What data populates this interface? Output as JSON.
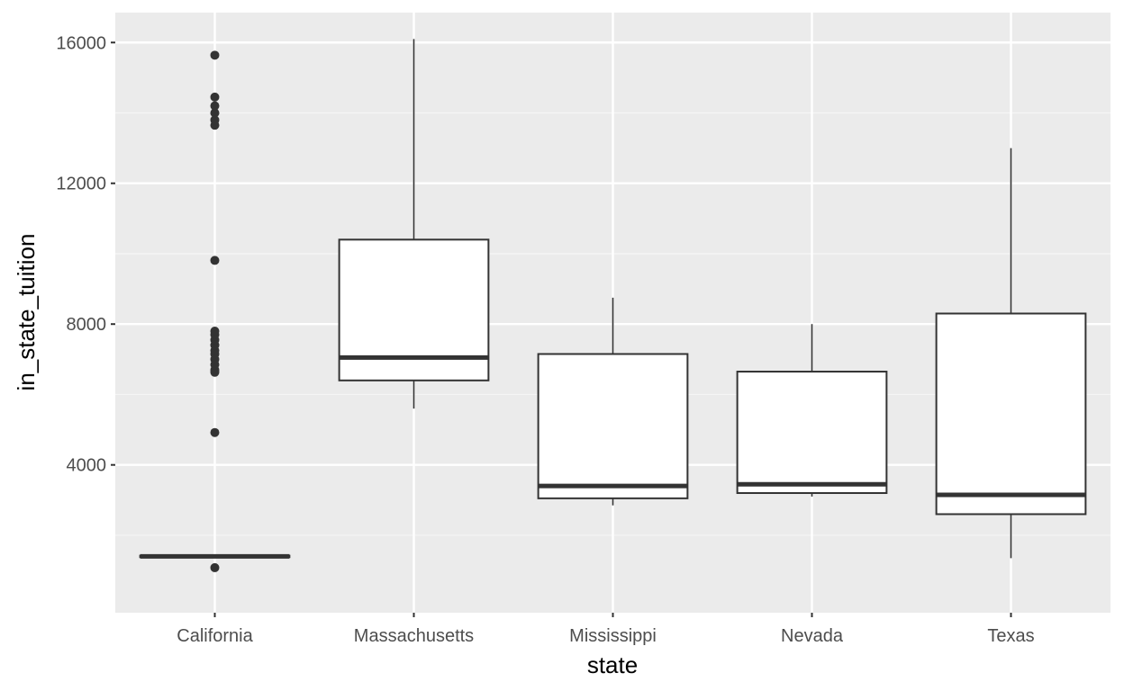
{
  "chart_data": {
    "type": "boxplot",
    "title": "",
    "xlabel": "state",
    "ylabel": "in_state_tuition",
    "categories": [
      "California",
      "Massachusetts",
      "Mississippi",
      "Nevada",
      "Texas"
    ],
    "ylim": [
      -200,
      16850
    ],
    "y_ticks": [
      4000,
      8000,
      12000,
      16000
    ],
    "y_tick_labels": [
      "4000",
      "8000",
      "12000",
      "16000"
    ],
    "y_minor_ticks": [
      2000,
      6000,
      10000,
      14000
    ],
    "boxes": [
      {
        "name": "California",
        "whisker_low": 1380,
        "q1": 1380,
        "median": 1400,
        "q3": 1420,
        "whisker_high": 1420,
        "outliers": [
          1080,
          4920,
          6630,
          6700,
          6850,
          7000,
          7150,
          7250,
          7400,
          7550,
          7700,
          7800,
          9810,
          13650,
          13800,
          14000,
          14200,
          14450,
          15640
        ]
      },
      {
        "name": "Massachusetts",
        "whisker_low": 5600,
        "q1": 6400,
        "median": 7050,
        "q3": 10400,
        "whisker_high": 16100,
        "outliers": []
      },
      {
        "name": "Mississippi",
        "whisker_low": 2850,
        "q1": 3050,
        "median": 3400,
        "q3": 7150,
        "whisker_high": 8750,
        "outliers": []
      },
      {
        "name": "Nevada",
        "whisker_low": 3100,
        "q1": 3200,
        "median": 3450,
        "q3": 6650,
        "whisker_high": 8000,
        "outliers": []
      },
      {
        "name": "Texas",
        "whisker_low": 1350,
        "q1": 2600,
        "median": 3150,
        "q3": 8300,
        "whisker_high": 13000,
        "outliers": []
      }
    ],
    "grid": true,
    "legend": "none",
    "colors": {
      "panel_background": "#ebebeb",
      "grid_major": "#ffffff",
      "grid_minor": "#f5f5f5",
      "box_fill": "#ffffff",
      "box_line": "#333333",
      "outlier": "#333333",
      "tick_text": "#4d4d4d",
      "title_text": "#000000"
    }
  }
}
